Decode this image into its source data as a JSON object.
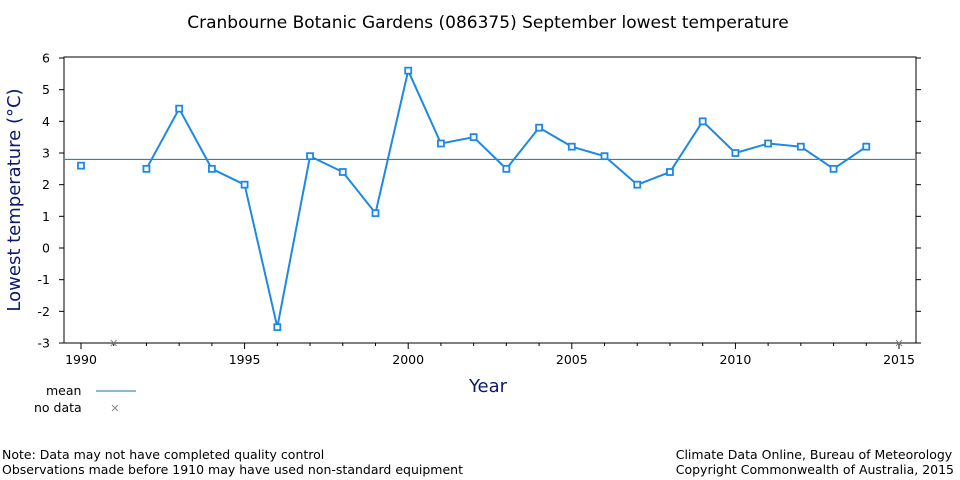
{
  "chart_data": {
    "type": "line",
    "title": "Cranbourne Botanic Gardens (086375) September lowest temperature",
    "xlabel": "Year",
    "ylabel": "Lowest temperature (°C)",
    "xlim": [
      1989.5,
      2015.5
    ],
    "ylim": [
      -3,
      6.3
    ],
    "xticks": [
      1990,
      1995,
      2000,
      2005,
      2010,
      2015
    ],
    "yticks": [
      -3,
      -2,
      -1,
      0,
      1,
      2,
      3,
      4,
      5,
      6
    ],
    "grid": false,
    "series": [
      {
        "x": [
          1990,
          1992,
          1993,
          1994,
          1995,
          1996,
          1997,
          1998,
          1999,
          2000,
          2001,
          2002,
          2003,
          2004,
          2005,
          2006,
          2007,
          2008,
          2009,
          2010,
          2011,
          2012,
          2013,
          2014
        ],
        "values": [
          2.6,
          2.5,
          4.4,
          2.5,
          2.0,
          -2.5,
          2.9,
          2.4,
          1.1,
          5.6,
          3.3,
          3.5,
          2.5,
          3.8,
          3.2,
          2.9,
          2.0,
          2.4,
          4.0,
          3.0,
          3.3,
          3.2,
          2.5,
          3.2
        ],
        "segments": [
          [
            0,
            0
          ],
          [
            1,
            23
          ]
        ],
        "color": "#1e88e5"
      }
    ],
    "mean": 2.8,
    "mean_color": "#1a6f9a",
    "no_data_years": [
      1991,
      2015
    ],
    "legend": {
      "placement": "bottom-left",
      "mean_label": "mean",
      "no_data_label": "no data"
    }
  },
  "notes": {
    "left_line1": "Note: Data may not have completed quality control",
    "left_line2": "Observations made before 1910 may have used non-standard equipment",
    "right_line1": "Climate Data Online, Bureau of Meteorology",
    "right_line2": "Copyright Commonwealth of Australia, 2015"
  }
}
